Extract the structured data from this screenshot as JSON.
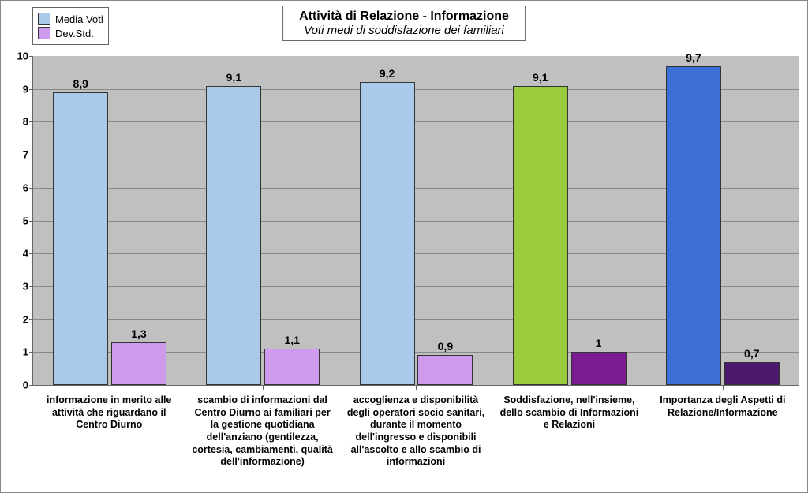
{
  "chart": {
    "type": "bar",
    "title": "Attività di Relazione - Informazione",
    "subtitle": "Voti medi di soddisfazione dei familiari",
    "title_fontsize": 16,
    "subtitle_fontsize": 15,
    "legend": [
      {
        "label": "Media Voti",
        "color": "#a9cbe9"
      },
      {
        "label": "Dev.Std.",
        "color": "#cf9aed"
      }
    ],
    "background_color": "#ffffff",
    "plot_background_color": "#c0c0c0",
    "grid_color": "#888888",
    "axis_color": "#666666",
    "ylim": [
      0,
      10
    ],
    "ytick_step": 1,
    "ytick_fontsize": 13,
    "label_fontsize": 14,
    "xlabel_fontsize": 12.5,
    "bar_width_ratio": 0.36,
    "bar_gap_ratio": 0.02,
    "categories": [
      {
        "xlabel": "informazione in merito alle attività che riguardano il Centro Diurno",
        "bars": [
          {
            "value": 8.9,
            "display": "8,9",
            "color": "#a9cbe9"
          },
          {
            "value": 1.3,
            "display": "1,3",
            "color": "#cf9aed"
          }
        ]
      },
      {
        "xlabel": "scambio di informazioni dal Centro Diurno ai familiari per la gestione quotidiana dell'anziano (gentilezza, cortesia, cambiamenti, qualità dell'informazione)",
        "bars": [
          {
            "value": 9.1,
            "display": "9,1",
            "color": "#a9cbe9"
          },
          {
            "value": 1.1,
            "display": "1,1",
            "color": "#cf9aed"
          }
        ]
      },
      {
        "xlabel": "accoglienza e disponibilità degli operatori socio sanitari, durante il momento dell'ingresso  e disponibili all'ascolto e allo scambio di informazioni",
        "bars": [
          {
            "value": 9.2,
            "display": "9,2",
            "color": "#a9cbe9"
          },
          {
            "value": 0.9,
            "display": "0,9",
            "color": "#cf9aed"
          }
        ]
      },
      {
        "xlabel": "Soddisfazione, nell'insieme, dello scambio di Informazioni e Relazioni",
        "bars": [
          {
            "value": 9.1,
            "display": "9,1",
            "color": "#9acb3c"
          },
          {
            "value": 1.0,
            "display": "1",
            "color": "#7b1b8f"
          }
        ]
      },
      {
        "xlabel": "Importanza degli Aspetti di Relazione/Informazione",
        "bars": [
          {
            "value": 9.7,
            "display": "9,7",
            "color": "#3b6fd6"
          },
          {
            "value": 0.7,
            "display": "0,7",
            "color": "#4b1a6e"
          }
        ]
      }
    ]
  }
}
